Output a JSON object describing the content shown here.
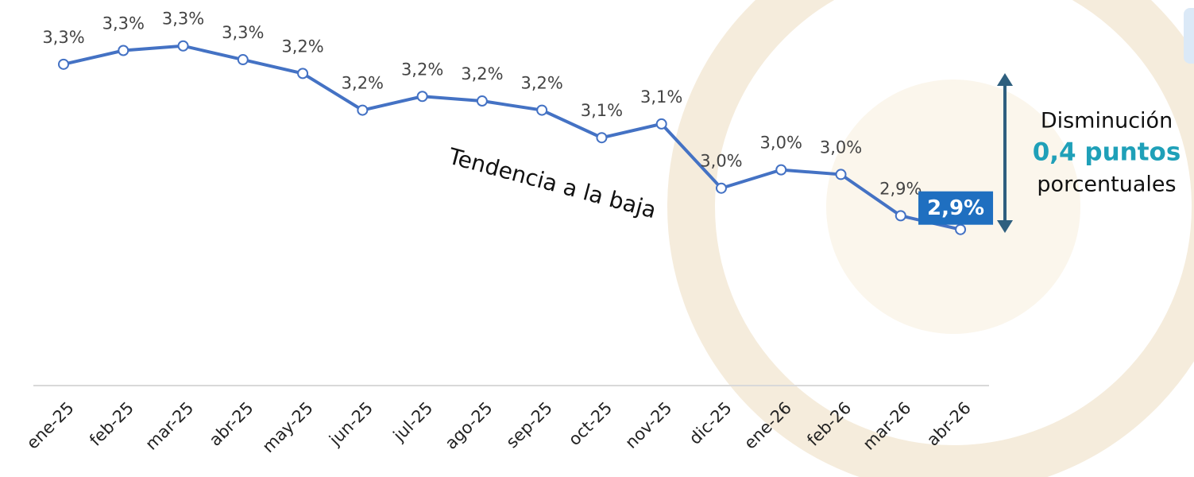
{
  "chart_data": {
    "type": "line",
    "categories": [
      "ene-25",
      "feb-25",
      "mar-25",
      "abr-25",
      "may-25",
      "jun-25",
      "jul-25",
      "ago-25",
      "sep-25",
      "oct-25",
      "nov-25",
      "dic-25",
      "ene-26",
      "feb-26",
      "mar-26",
      "abr-26"
    ],
    "series": [
      {
        "name": null,
        "color": "#4472c4",
        "values": [
          3.26,
          3.29,
          3.3,
          3.27,
          3.24,
          3.16,
          3.19,
          3.18,
          3.16,
          3.1,
          3.13,
          2.99,
          3.03,
          3.02,
          2.93,
          2.9
        ],
        "value_labels": [
          "3,3%",
          "3,3%",
          "3,3%",
          "3,3%",
          "3,2%",
          "3,2%",
          "3,2%",
          "3,2%",
          "3,2%",
          "3,1%",
          "3,1%",
          "3,0%",
          "3,0%",
          "3,0%",
          "2,9%",
          "2,9%"
        ]
      }
    ],
    "ylim": [
      2.56,
      3.4
    ],
    "annotations": [
      "Tendencia a la baja",
      "Disminución",
      "0,4 puntos",
      "porcentuales"
    ]
  }
}
